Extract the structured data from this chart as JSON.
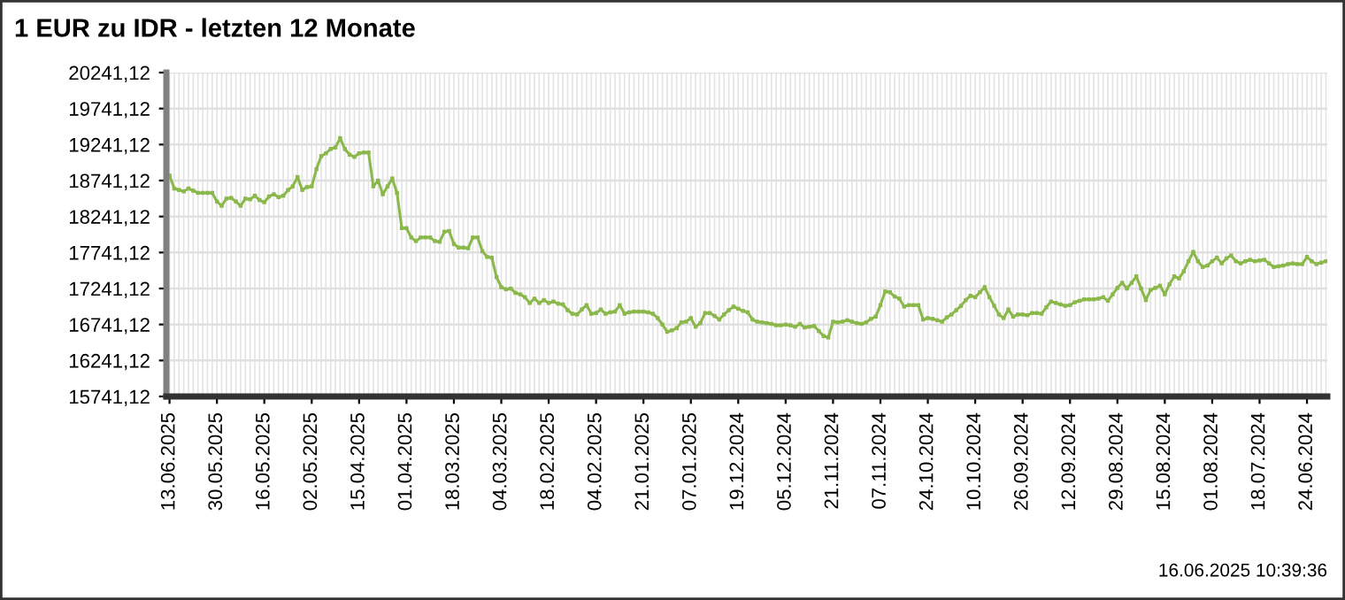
{
  "chart_data": {
    "type": "line",
    "title": "1 EUR zu IDR - letzten 12 Monate",
    "categories": [
      "13.06.2025",
      null,
      null,
      null,
      null,
      null,
      null,
      null,
      null,
      null,
      "30.05.2025",
      null,
      null,
      null,
      null,
      null,
      null,
      null,
      null,
      null,
      "16.05.2025",
      null,
      null,
      null,
      null,
      null,
      null,
      null,
      null,
      null,
      "02.05.2025",
      null,
      null,
      null,
      null,
      null,
      null,
      null,
      null,
      null,
      "15.04.2025",
      null,
      null,
      null,
      null,
      null,
      null,
      null,
      null,
      null,
      "01.04.2025",
      null,
      null,
      null,
      null,
      null,
      null,
      null,
      null,
      null,
      "18.03.2025",
      null,
      null,
      null,
      null,
      null,
      null,
      null,
      null,
      null,
      "04.03.2025",
      null,
      null,
      null,
      null,
      null,
      null,
      null,
      null,
      null,
      "18.02.2025",
      null,
      null,
      null,
      null,
      null,
      null,
      null,
      null,
      null,
      "04.02.2025",
      null,
      null,
      null,
      null,
      null,
      null,
      null,
      null,
      null,
      "21.01.2025",
      null,
      null,
      null,
      null,
      null,
      null,
      null,
      null,
      null,
      "07.01.2025",
      null,
      null,
      null,
      null,
      null,
      null,
      null,
      null,
      null,
      "19.12.2024",
      null,
      null,
      null,
      null,
      null,
      null,
      null,
      null,
      null,
      "05.12.2024",
      null,
      null,
      null,
      null,
      null,
      null,
      null,
      null,
      null,
      "21.11.2024",
      null,
      null,
      null,
      null,
      null,
      null,
      null,
      null,
      null,
      "07.11.2024",
      null,
      null,
      null,
      null,
      null,
      null,
      null,
      null,
      null,
      "24.10.2024",
      null,
      null,
      null,
      null,
      null,
      null,
      null,
      null,
      null,
      "10.10.2024",
      null,
      null,
      null,
      null,
      null,
      null,
      null,
      null,
      null,
      "26.09.2024",
      null,
      null,
      null,
      null,
      null,
      null,
      null,
      null,
      null,
      "12.09.2024",
      null,
      null,
      null,
      null,
      null,
      null,
      null,
      null,
      null,
      "29.08.2024",
      null,
      null,
      null,
      null,
      null,
      null,
      null,
      null,
      null,
      "15.08.2024",
      null,
      null,
      null,
      null,
      null,
      null,
      null,
      null,
      null,
      "01.08.2024",
      null,
      null,
      null,
      null,
      null,
      null,
      null,
      null,
      null,
      "18.07.2024",
      null,
      null,
      null,
      null,
      null,
      null,
      null,
      null,
      null,
      "24.06.2024",
      null,
      null,
      null,
      null
    ],
    "series": [
      {
        "color": "#8ab84a",
        "values": [
          18810,
          18630,
          18610,
          18590,
          18630,
          18600,
          18570,
          18570,
          18570,
          18570,
          18450,
          18390,
          18490,
          18500,
          18450,
          18390,
          18490,
          18480,
          18530,
          18470,
          18440,
          18520,
          18550,
          18510,
          18530,
          18610,
          18660,
          18790,
          18610,
          18650,
          18660,
          18900,
          19080,
          19120,
          19180,
          19200,
          19330,
          19180,
          19100,
          19070,
          19120,
          19130,
          19130,
          18660,
          18740,
          18550,
          18660,
          18770,
          18570,
          18080,
          18080,
          17950,
          17900,
          17950,
          17950,
          17950,
          17900,
          17890,
          18030,
          18040,
          17860,
          17810,
          17810,
          17800,
          17950,
          17950,
          17760,
          17680,
          17670,
          17400,
          17260,
          17230,
          17240,
          17180,
          17160,
          17120,
          17040,
          17100,
          17040,
          17080,
          17040,
          17060,
          17030,
          17020,
          16940,
          16890,
          16880,
          16950,
          17010,
          16890,
          16900,
          16950,
          16890,
          16910,
          16920,
          17010,
          16890,
          16910,
          16920,
          16920,
          16920,
          16910,
          16890,
          16830,
          16740,
          16640,
          16660,
          16690,
          16770,
          16780,
          16830,
          16710,
          16760,
          16900,
          16900,
          16860,
          16810,
          16880,
          16940,
          16990,
          16960,
          16930,
          16910,
          16810,
          16780,
          16770,
          16760,
          16750,
          16730,
          16730,
          16740,
          16730,
          16710,
          16750,
          16700,
          16710,
          16720,
          16650,
          16580,
          16560,
          16780,
          16770,
          16780,
          16800,
          16780,
          16760,
          16750,
          16770,
          16820,
          16850,
          17010,
          17200,
          17190,
          17130,
          17100,
          16990,
          17010,
          17010,
          17010,
          16810,
          16830,
          16820,
          16800,
          16780,
          16840,
          16880,
          16940,
          17000,
          17080,
          17140,
          17120,
          17190,
          17260,
          17120,
          17000,
          16880,
          16830,
          16950,
          16850,
          16880,
          16880,
          16870,
          16900,
          16900,
          16890,
          16980,
          17060,
          17040,
          17020,
          17000,
          17010,
          17050,
          17070,
          17090,
          17090,
          17090,
          17100,
          17120,
          17070,
          17160,
          17250,
          17320,
          17240,
          17320,
          17410,
          17240,
          17080,
          17220,
          17250,
          17280,
          17160,
          17300,
          17410,
          17380,
          17480,
          17620,
          17750,
          17620,
          17540,
          17560,
          17620,
          17670,
          17590,
          17660,
          17700,
          17620,
          17590,
          17620,
          17640,
          17620,
          17630,
          17640,
          17590,
          17540,
          17550,
          17560,
          17580,
          17590,
          17580,
          17580,
          17680,
          17620,
          17580,
          17600,
          17620
        ]
      }
    ],
    "ylim": [
      15741.12,
      20241.12
    ],
    "yticks": [
      {
        "value": 15741.12,
        "label": "15741,12"
      },
      {
        "value": 16241.12,
        "label": "16241,12"
      },
      {
        "value": 16741.12,
        "label": "16741,12"
      },
      {
        "value": 17241.12,
        "label": "17241,12"
      },
      {
        "value": 17741.12,
        "label": "17741,12"
      },
      {
        "value": 18241.12,
        "label": "18241,12"
      },
      {
        "value": 18741.12,
        "label": "18741,12"
      },
      {
        "value": 19241.12,
        "label": "19241,12"
      },
      {
        "value": 19741.12,
        "label": "19741,12"
      },
      {
        "value": 20241.12,
        "label": "20241,12"
      }
    ],
    "grid": true,
    "marker": "square",
    "line_style": "solid",
    "annotations": [
      "16.06.2025 10:39:36"
    ]
  }
}
